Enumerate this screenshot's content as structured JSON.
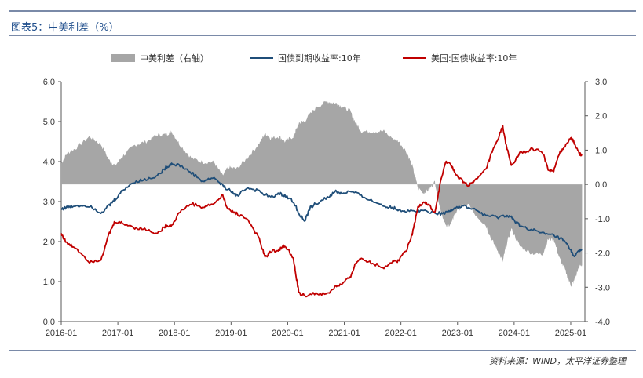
{
  "header": {
    "title": "图表5：中美利差（%）"
  },
  "footer": {
    "source": "资料来源：WIND，太平洋证券整理"
  },
  "chart_data": {
    "type": "line",
    "title": "中美利差（%）",
    "legend": {
      "placement": "top",
      "entries": [
        {
          "name": "中美利差（右轴）",
          "kind": "area",
          "color": "#a6a6a6"
        },
        {
          "name": "国债到期收益率:10年",
          "kind": "line",
          "color": "#1f4e79"
        },
        {
          "name": "美国:国债收益率:10年",
          "kind": "line",
          "color": "#c00000"
        }
      ]
    },
    "x_ticks": [
      "2016-01",
      "2017-01",
      "2018-01",
      "2019-01",
      "2020-01",
      "2021-01",
      "2022-01",
      "2023-01",
      "2024-01",
      "2025-01"
    ],
    "x_range": [
      2016.0,
      2025.25
    ],
    "y_left": {
      "ticks": [
        "0.0",
        "1.0",
        "2.0",
        "3.0",
        "4.0",
        "5.0",
        "6.0"
      ],
      "range": [
        0,
        6
      ]
    },
    "y_right": {
      "ticks": [
        "-4.0",
        "-3.0",
        "-2.0",
        "-1.0",
        "0.0",
        "1.0",
        "2.0",
        "3.0"
      ],
      "range": [
        -4,
        3
      ]
    },
    "series": [
      {
        "name": "国债到期收益率:10年",
        "axis": "left",
        "color": "#1f4e79",
        "x": [
          2016.0,
          2016.1,
          2016.25,
          2016.5,
          2016.7,
          2016.85,
          2016.95,
          2017.1,
          2017.3,
          2017.5,
          2017.7,
          2017.85,
          2017.95,
          2018.1,
          2018.3,
          2018.5,
          2018.7,
          2018.85,
          2018.95,
          2019.1,
          2019.3,
          2019.5,
          2019.7,
          2019.85,
          2019.95,
          2020.1,
          2020.2,
          2020.3,
          2020.4,
          2020.5,
          2020.7,
          2020.85,
          2020.95,
          2021.1,
          2021.3,
          2021.5,
          2021.7,
          2021.85,
          2021.95,
          2022.1,
          2022.3,
          2022.5,
          2022.7,
          2022.85,
          2022.95,
          2023.1,
          2023.3,
          2023.5,
          2023.7,
          2023.85,
          2023.95,
          2024.1,
          2024.3,
          2024.5,
          2024.7,
          2024.85,
          2024.95,
          2025.05,
          2025.15,
          2025.2
        ],
        "values": [
          2.82,
          2.85,
          2.9,
          2.9,
          2.72,
          2.9,
          3.05,
          3.3,
          3.5,
          3.55,
          3.65,
          3.85,
          3.95,
          3.9,
          3.72,
          3.5,
          3.6,
          3.4,
          3.3,
          3.15,
          3.35,
          3.25,
          3.1,
          3.2,
          3.15,
          3.0,
          2.7,
          2.5,
          2.85,
          2.95,
          3.1,
          3.25,
          3.2,
          3.25,
          3.15,
          3.0,
          2.9,
          2.85,
          2.8,
          2.75,
          2.78,
          2.75,
          2.7,
          2.75,
          2.85,
          2.88,
          2.8,
          2.65,
          2.6,
          2.65,
          2.6,
          2.4,
          2.3,
          2.2,
          2.15,
          2.05,
          1.9,
          1.65,
          1.75,
          1.8
        ]
      },
      {
        "name": "美国:国债收益率:10年",
        "axis": "left",
        "color": "#c00000",
        "x": [
          2016.0,
          2016.1,
          2016.25,
          2016.5,
          2016.7,
          2016.85,
          2016.95,
          2017.1,
          2017.3,
          2017.5,
          2017.7,
          2017.85,
          2017.95,
          2018.1,
          2018.3,
          2018.5,
          2018.7,
          2018.85,
          2018.95,
          2019.1,
          2019.3,
          2019.5,
          2019.6,
          2019.7,
          2019.85,
          2019.95,
          2020.1,
          2020.15,
          2020.2,
          2020.3,
          2020.5,
          2020.7,
          2020.85,
          2020.95,
          2021.1,
          2021.2,
          2021.3,
          2021.5,
          2021.7,
          2021.85,
          2021.95,
          2022.1,
          2022.2,
          2022.3,
          2022.4,
          2022.5,
          2022.6,
          2022.7,
          2022.8,
          2022.9,
          2022.95,
          2023.1,
          2023.2,
          2023.3,
          2023.5,
          2023.6,
          2023.7,
          2023.8,
          2023.85,
          2023.95,
          2024.1,
          2024.3,
          2024.5,
          2024.6,
          2024.7,
          2024.8,
          2024.9,
          2025.0,
          2025.05,
          2025.15,
          2025.2
        ],
        "values": [
          2.2,
          1.95,
          1.85,
          1.5,
          1.55,
          2.2,
          2.5,
          2.45,
          2.35,
          2.3,
          2.2,
          2.4,
          2.4,
          2.75,
          2.95,
          2.85,
          2.95,
          3.15,
          2.8,
          2.7,
          2.55,
          2.05,
          1.6,
          1.75,
          1.8,
          1.9,
          1.6,
          1.1,
          0.7,
          0.65,
          0.7,
          0.68,
          0.88,
          0.92,
          1.1,
          1.45,
          1.6,
          1.45,
          1.35,
          1.5,
          1.52,
          1.8,
          2.2,
          2.85,
          3.0,
          2.9,
          2.7,
          3.5,
          4.0,
          3.9,
          3.7,
          3.5,
          3.4,
          3.5,
          3.8,
          4.2,
          4.5,
          4.9,
          4.45,
          3.9,
          4.2,
          4.3,
          4.25,
          3.8,
          3.75,
          4.2,
          4.4,
          4.6,
          4.5,
          4.2,
          4.15
        ]
      },
      {
        "name": "中美利差（右轴）",
        "axis": "right",
        "color": "#a6a6a6",
        "x": [
          2016.0,
          2016.1,
          2016.25,
          2016.5,
          2016.7,
          2016.85,
          2016.95,
          2017.1,
          2017.3,
          2017.5,
          2017.7,
          2017.85,
          2017.95,
          2018.1,
          2018.3,
          2018.5,
          2018.7,
          2018.85,
          2018.95,
          2019.1,
          2019.3,
          2019.5,
          2019.6,
          2019.7,
          2019.85,
          2019.95,
          2020.1,
          2020.15,
          2020.2,
          2020.3,
          2020.5,
          2020.7,
          2020.85,
          2020.95,
          2021.1,
          2021.2,
          2021.3,
          2021.5,
          2021.7,
          2021.85,
          2021.95,
          2022.1,
          2022.2,
          2022.3,
          2022.4,
          2022.5,
          2022.6,
          2022.7,
          2022.8,
          2022.9,
          2022.95,
          2023.1,
          2023.2,
          2023.3,
          2023.5,
          2023.6,
          2023.7,
          2023.8,
          2023.85,
          2023.95,
          2024.1,
          2024.3,
          2024.5,
          2024.6,
          2024.7,
          2024.8,
          2024.9,
          2025.0,
          2025.05,
          2025.15,
          2025.2
        ],
        "values": [
          0.62,
          0.9,
          1.05,
          1.4,
          1.17,
          0.7,
          0.55,
          0.85,
          1.15,
          1.25,
          1.45,
          1.45,
          1.55,
          1.15,
          0.77,
          0.65,
          0.65,
          0.25,
          0.5,
          0.45,
          0.8,
          1.2,
          1.5,
          1.35,
          1.4,
          1.25,
          1.4,
          1.6,
          1.8,
          1.85,
          2.25,
          2.42,
          2.37,
          2.28,
          2.15,
          1.8,
          1.55,
          1.55,
          1.55,
          1.35,
          1.28,
          0.95,
          0.55,
          -0.1,
          -0.25,
          -0.15,
          0.08,
          -0.75,
          -1.25,
          -1.1,
          -0.85,
          -0.62,
          -0.6,
          -0.85,
          -1.2,
          -1.6,
          -1.9,
          -2.25,
          -1.85,
          -1.3,
          -1.8,
          -2.0,
          -2.05,
          -1.6,
          -1.6,
          -2.15,
          -2.5,
          -2.95,
          -2.85,
          -2.4,
          -2.35
        ]
      }
    ]
  }
}
